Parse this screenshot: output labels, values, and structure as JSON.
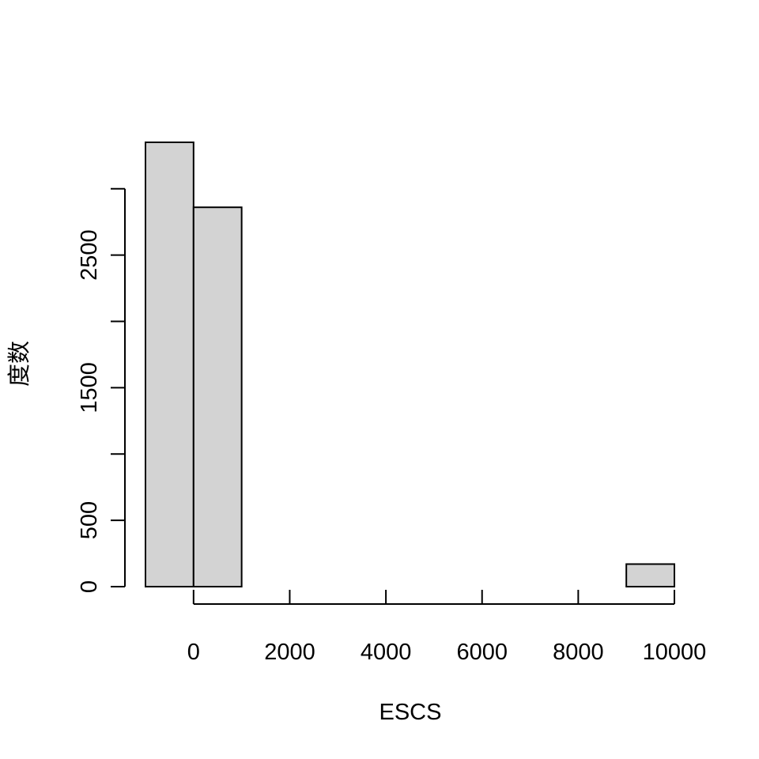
{
  "chart_data": {
    "type": "bar",
    "title": "",
    "xlabel": "ESCS",
    "ylabel": "度数",
    "bin_edges": [
      -1000,
      0,
      1000,
      2000,
      3000,
      4000,
      5000,
      6000,
      7000,
      8000,
      9000,
      10000
    ],
    "values": [
      3350,
      2860,
      0,
      0,
      0,
      0,
      0,
      0,
      0,
      0,
      170
    ],
    "xlim": [
      -1000,
      10000
    ],
    "ylim": [
      0,
      3350
    ],
    "x_ticks": [
      0,
      2000,
      4000,
      6000,
      8000,
      10000
    ],
    "x_tick_labels": [
      "0",
      "2000",
      "4000",
      "6000",
      "8000",
      "10000"
    ],
    "y_ticks": [
      0,
      500,
      1000,
      1500,
      2000,
      2500,
      3000
    ],
    "y_tick_labels": [
      "0",
      "500",
      "",
      "1500",
      "",
      "2500",
      ""
    ],
    "grid": false,
    "legend": "none",
    "colors": {
      "bar_fill": "#d3d3d3",
      "bar_stroke": "#000000",
      "axis": "#000000"
    }
  }
}
